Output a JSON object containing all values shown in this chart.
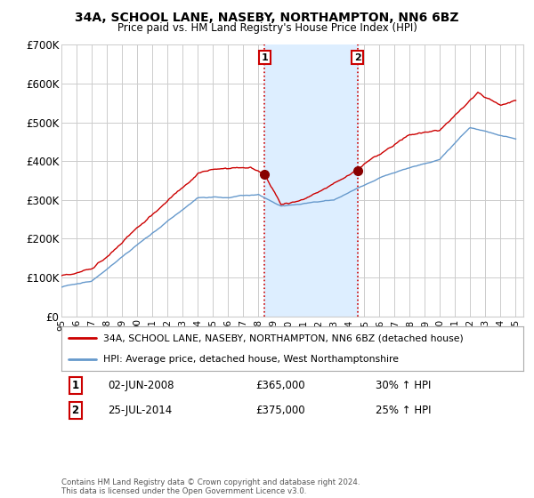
{
  "title": "34A, SCHOOL LANE, NASEBY, NORTHAMPTON, NN6 6BZ",
  "subtitle": "Price paid vs. HM Land Registry's House Price Index (HPI)",
  "ylim": [
    0,
    700000
  ],
  "yticks": [
    0,
    100000,
    200000,
    300000,
    400000,
    500000,
    600000,
    700000
  ],
  "ytick_labels": [
    "£0",
    "£100K",
    "£200K",
    "£300K",
    "£400K",
    "£500K",
    "£600K",
    "£700K"
  ],
  "xlim_start": 1995,
  "xlim_end": 2025.5,
  "legend_line1": "34A, SCHOOL LANE, NASEBY, NORTHAMPTON, NN6 6BZ (detached house)",
  "legend_line2": "HPI: Average price, detached house, West Northamptonshire",
  "legend_color1": "#cc0000",
  "legend_color2": "#6699cc",
  "transaction1_label": "1",
  "transaction1_date": "02-JUN-2008",
  "transaction1_price": "£365,000",
  "transaction1_hpi": "30% ↑ HPI",
  "transaction1_x": 2008.42,
  "transaction1_y": 365000,
  "transaction2_label": "2",
  "transaction2_date": "25-JUL-2014",
  "transaction2_price": "£375,000",
  "transaction2_hpi": "25% ↑ HPI",
  "transaction2_x": 2014.56,
  "transaction2_y": 375000,
  "shade_color": "#ddeeff",
  "vline_color": "#cc0000",
  "background_color": "#ffffff",
  "grid_color": "#cccccc",
  "footer": "Contains HM Land Registry data © Crown copyright and database right 2024.\nThis data is licensed under the Open Government Licence v3.0."
}
